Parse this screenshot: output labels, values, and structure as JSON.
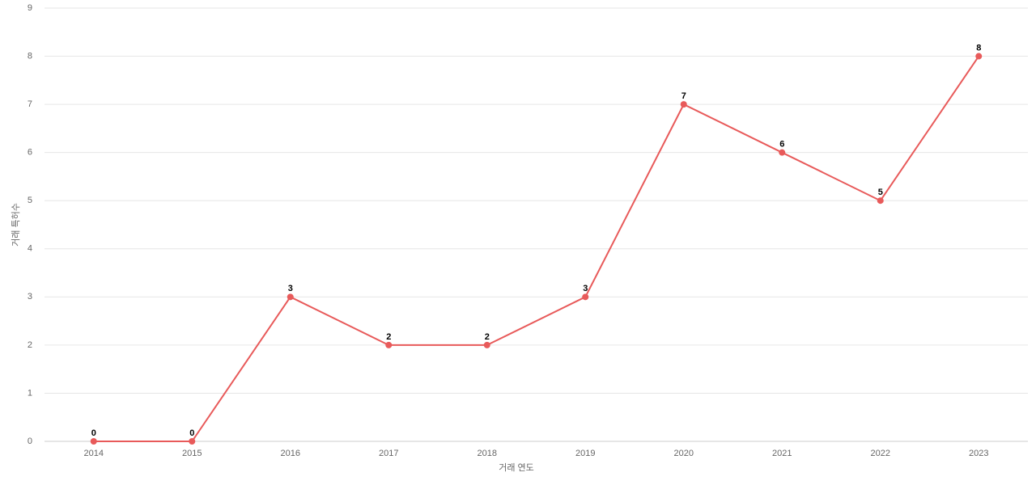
{
  "chart_data": {
    "type": "line",
    "x_label": "거래 연도",
    "y_label": "거래 특허수",
    "categories": [
      "2014",
      "2015",
      "2016",
      "2017",
      "2018",
      "2019",
      "2020",
      "2021",
      "2022",
      "2023"
    ],
    "values": [
      0,
      0,
      3,
      2,
      2,
      3,
      7,
      6,
      5,
      8
    ],
    "color": "#e85a5a",
    "ylim": [
      0,
      9
    ],
    "yticks": [
      0,
      1,
      2,
      3,
      4,
      5,
      6,
      7,
      8,
      9
    ],
    "grid": true,
    "data_labels": true
  }
}
